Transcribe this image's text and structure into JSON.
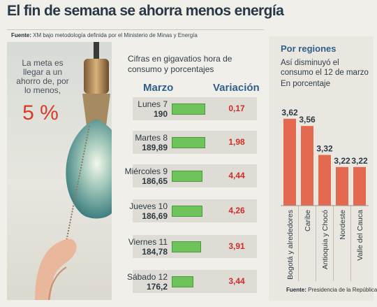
{
  "headline": "El fin de semana se ahorra menos energía",
  "source_top": {
    "label": "Fuente:",
    "text": "XM bajo metodología definida por el Ministerio de Minas y Energía"
  },
  "goal": {
    "text": "La meta es llegar a un ahorro de, por lo menos,",
    "value": "5 %"
  },
  "table": {
    "intro": "Cifras en gigavatios hora de consumo y porcentajes",
    "col_left": "Marzo",
    "col_right": "Variación",
    "rows": [
      {
        "day": "Lunes 7",
        "value": "190",
        "variation": "0,17"
      },
      {
        "day": "Martes 8",
        "value": "189,89",
        "variation": "1,98"
      },
      {
        "day": "Miércoles 9",
        "value": "186,65",
        "variation": "4,44"
      },
      {
        "day": "Jueves 10",
        "value": "186,69",
        "variation": "4,26"
      },
      {
        "day": "Viernes 11",
        "value": "184,78",
        "variation": "3,91"
      },
      {
        "day": "Sábado 12",
        "value": "176,2",
        "variation": "3,44"
      }
    ]
  },
  "regions": {
    "title": "Por regiones",
    "subtitle": "Así disminuyó el consumo el 12 de marzo",
    "unit": "En porcentaje",
    "footer_label": "Fuente:",
    "footer_text": "Presidencia de la República."
  },
  "chart_data": {
    "type": "bar",
    "title": "Por regiones",
    "subtitle": "Así disminuyó el consumo el 12 de marzo",
    "ylabel": "En porcentaje",
    "categories": [
      "Bogotá y alrededores",
      "Caribe",
      "Antioquia y Chocó",
      "Nordeste",
      "Valle del Cauca"
    ],
    "values": [
      3.62,
      3.56,
      3.32,
      3.22,
      3.22
    ],
    "value_labels": [
      "3,62",
      "3,56",
      "3,32",
      "3,22",
      "3,22"
    ],
    "ylim": [
      2.9,
      3.7
    ],
    "grid": false,
    "bar_color": "#e36a50"
  },
  "colors": {
    "accent": "#2f5f8c",
    "bar_green": "#6ec35a",
    "red": "#d12e28",
    "region_bar": "#e36a50"
  }
}
